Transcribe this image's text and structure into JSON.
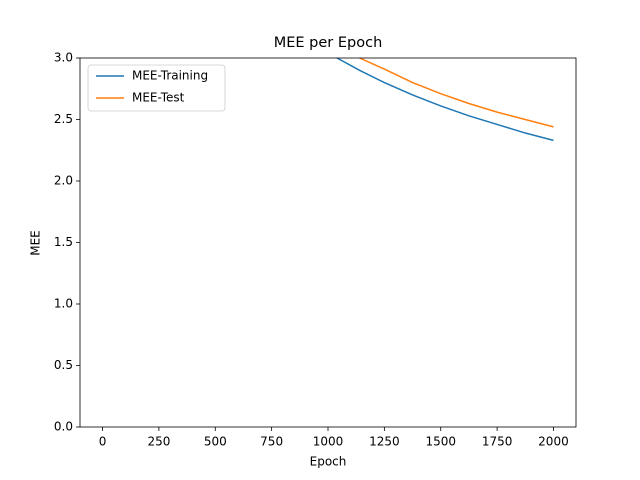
{
  "chart_data": {
    "type": "line",
    "title": "MEE per Epoch",
    "x_label": "Epoch",
    "y_label": "MEE",
    "x": [
      1040,
      1140,
      1250,
      1375,
      1500,
      1625,
      1750,
      1875,
      2000
    ],
    "series": [
      {
        "name": "MEE-Training",
        "color": "#1f77b4",
        "values": [
          3.0,
          2.9,
          2.8,
          2.7,
          2.61,
          2.53,
          2.46,
          2.39,
          2.33
        ]
      },
      {
        "name": "MEE-Test",
        "color": "#ff7f0e",
        "values": [
          null,
          3.0,
          2.91,
          2.8,
          2.71,
          2.63,
          2.56,
          2.5,
          2.44
        ]
      }
    ],
    "xlim": [
      -100,
      2100
    ],
    "xticks": [
      0,
      250,
      500,
      750,
      1000,
      1250,
      1500,
      1750,
      2000
    ],
    "ylim": [
      0,
      3
    ],
    "yticks": [
      {
        "value": 0,
        "label": "0.0"
      },
      {
        "value": 0.5,
        "label": "0.5"
      },
      {
        "value": 1,
        "label": "1.0"
      },
      {
        "value": 1.5,
        "label": "1.5"
      },
      {
        "value": 2,
        "label": "2.0"
      },
      {
        "value": 2.5,
        "label": "2.5"
      },
      {
        "value": 3,
        "label": "3.0"
      }
    ],
    "legend": "upper left"
  }
}
